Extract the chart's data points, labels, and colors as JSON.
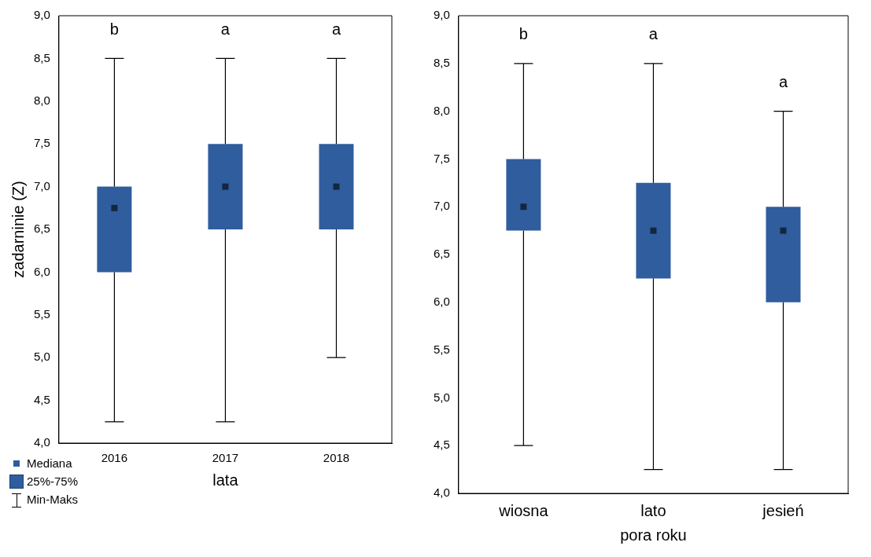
{
  "chart_data": [
    {
      "type": "box",
      "ylabel": "zadarninie (Z)",
      "xlabel": "lata",
      "categories": [
        "2016",
        "2017",
        "2018"
      ],
      "color": "#2f5d9e",
      "ylim": [
        4,
        9
      ],
      "yticks": [
        {
          "value": 4,
          "label": "4,0"
        },
        {
          "value": 4.5,
          "label": "4,5"
        },
        {
          "value": 5,
          "label": "5,0"
        },
        {
          "value": 5.5,
          "label": "5,5"
        },
        {
          "value": 6,
          "label": "6,0"
        },
        {
          "value": 6.5,
          "label": "6,5"
        },
        {
          "value": 7,
          "label": "7,0"
        },
        {
          "value": 7.5,
          "label": "7,5"
        },
        {
          "value": 8,
          "label": "8,0"
        },
        {
          "value": 8.5,
          "label": "8,5"
        },
        {
          "value": 9,
          "label": "9,0"
        }
      ],
      "boxes": [
        {
          "low": 4.25,
          "q1": 6.0,
          "median": 6.75,
          "q3": 7.0,
          "high": 8.5
        },
        {
          "low": 4.25,
          "q1": 6.5,
          "median": 7.0,
          "q3": 7.5,
          "high": 8.5
        },
        {
          "low": 5.0,
          "q1": 6.5,
          "median": 7.0,
          "q3": 7.5,
          "high": 8.5
        }
      ],
      "annotations": [
        "b",
        "a",
        "a",
        "Mediana",
        "25%-75%",
        "Min-Maks"
      ]
    },
    {
      "type": "box",
      "xlabel": "pora roku",
      "categories": [
        "wiosna",
        "lato",
        "jesień"
      ],
      "color": "#2f5d9e",
      "ylim": [
        4,
        9
      ],
      "yticks": [
        {
          "value": 4,
          "label": "4,0"
        },
        {
          "value": 4.5,
          "label": "4,5"
        },
        {
          "value": 5,
          "label": "5,0"
        },
        {
          "value": 5.5,
          "label": "5,5"
        },
        {
          "value": 6,
          "label": "6,0"
        },
        {
          "value": 6.5,
          "label": "6,5"
        },
        {
          "value": 7,
          "label": "7,0"
        },
        {
          "value": 7.5,
          "label": "7,5"
        },
        {
          "value": 8,
          "label": "8,0"
        },
        {
          "value": 8.5,
          "label": "8,5"
        },
        {
          "value": 9,
          "label": "9,0"
        }
      ],
      "boxes": [
        {
          "low": 4.5,
          "q1": 6.75,
          "median": 7.0,
          "q3": 7.5,
          "high": 8.5
        },
        {
          "low": 4.25,
          "q1": 6.25,
          "median": 6.75,
          "q3": 7.25,
          "high": 8.5
        },
        {
          "low": 4.25,
          "q1": 6.0,
          "median": 6.75,
          "q3": 7.0,
          "high": 8.0
        }
      ],
      "annotations": [
        "b",
        "a",
        "a"
      ]
    }
  ]
}
